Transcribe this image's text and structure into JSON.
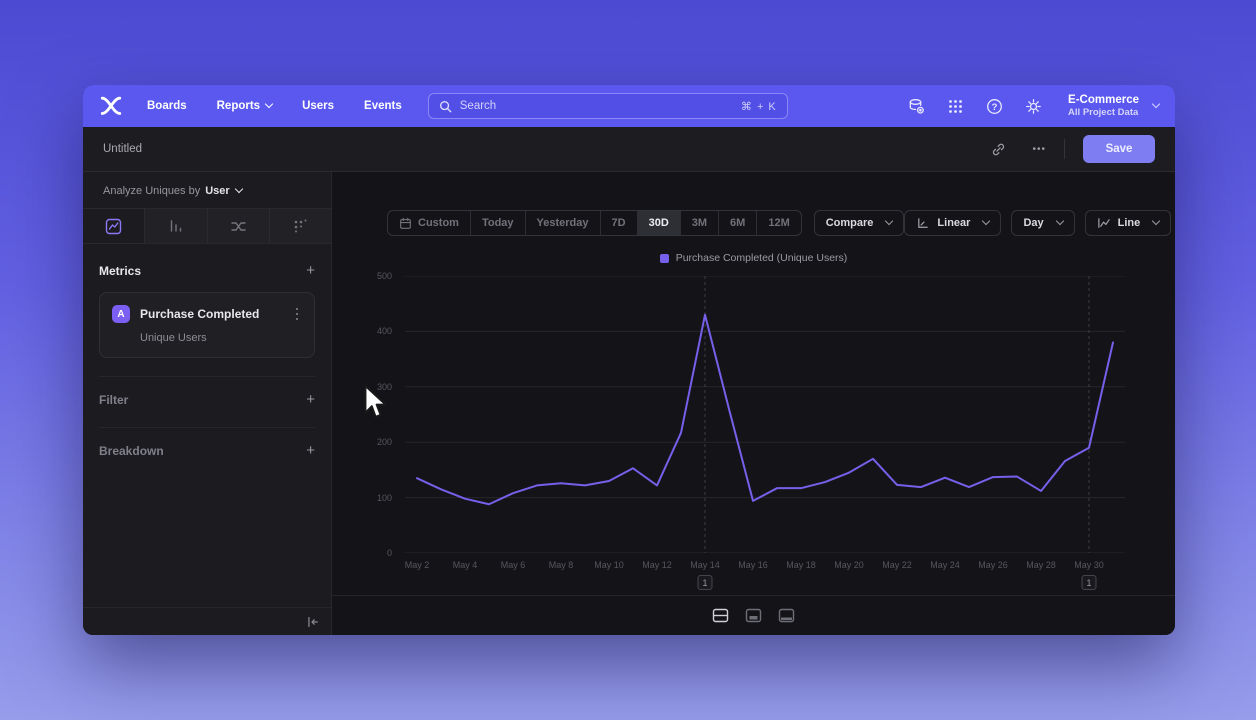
{
  "nav": {
    "items": [
      {
        "label": "Boards"
      },
      {
        "label": "Reports",
        "has_chevron": true
      },
      {
        "label": "Users"
      },
      {
        "label": "Events"
      }
    ],
    "search": {
      "placeholder": "Search",
      "shortcut": "⌘ + K"
    },
    "project": {
      "name": "E-Commerce",
      "scope": "All Project Data"
    }
  },
  "titlebar": {
    "title": "Untitled",
    "save_label": "Save"
  },
  "icons": {
    "add": "+",
    "more": "•••"
  },
  "sidebar": {
    "analyze_prefix": "Analyze Uniques by",
    "analyze_value": "User",
    "metrics_header": "Metrics",
    "metric_card": {
      "badge": "A",
      "title": "Purchase Completed",
      "subtitle": "Unique Users"
    },
    "filter_header": "Filter",
    "breakdown_header": "Breakdown"
  },
  "controls": {
    "date_ranges": [
      "Custom",
      "Today",
      "Yesterday",
      "7D",
      "30D",
      "3M",
      "6M",
      "12M"
    ],
    "active_range": "30D",
    "compare_label": "Compare",
    "scale_label": "Linear",
    "granularity_label": "Day",
    "chart_type_label": "Line"
  },
  "chart_data": {
    "type": "line",
    "legend": "Purchase Completed (Unique Users)",
    "legend_position": "top-center",
    "grid": true,
    "ylim": [
      0,
      500
    ],
    "y_ticks": [
      0,
      100,
      200,
      300,
      400,
      500
    ],
    "x_tick_labels": [
      "May 2",
      "May 4",
      "May 6",
      "May 8",
      "May 10",
      "May 12",
      "May 14",
      "May 16",
      "May 18",
      "May 20",
      "May 22",
      "May 24",
      "May 26",
      "May 28",
      "May 30"
    ],
    "series": [
      {
        "name": "Purchase Completed (Unique Users)",
        "color": "#7560ea",
        "x": [
          "May 2",
          "May 3",
          "May 4",
          "May 5",
          "May 6",
          "May 7",
          "May 8",
          "May 9",
          "May 10",
          "May 11",
          "May 12",
          "May 13",
          "May 14",
          "May 15",
          "May 16",
          "May 17",
          "May 18",
          "May 19",
          "May 20",
          "May 21",
          "May 22",
          "May 23",
          "May 24",
          "May 25",
          "May 26",
          "May 27",
          "May 28",
          "May 29",
          "May 30",
          "May 31"
        ],
        "values": [
          135,
          115,
          98,
          88,
          108,
          122,
          126,
          122,
          130,
          153,
          122,
          217,
          430,
          260,
          94,
          117,
          117,
          128,
          145,
          170,
          123,
          119,
          136,
          119,
          137,
          138,
          112,
          166,
          190,
          380
        ]
      }
    ],
    "annotations": [
      {
        "label": "1",
        "x": "May 14"
      },
      {
        "label": "1",
        "x": "May 30"
      }
    ]
  }
}
